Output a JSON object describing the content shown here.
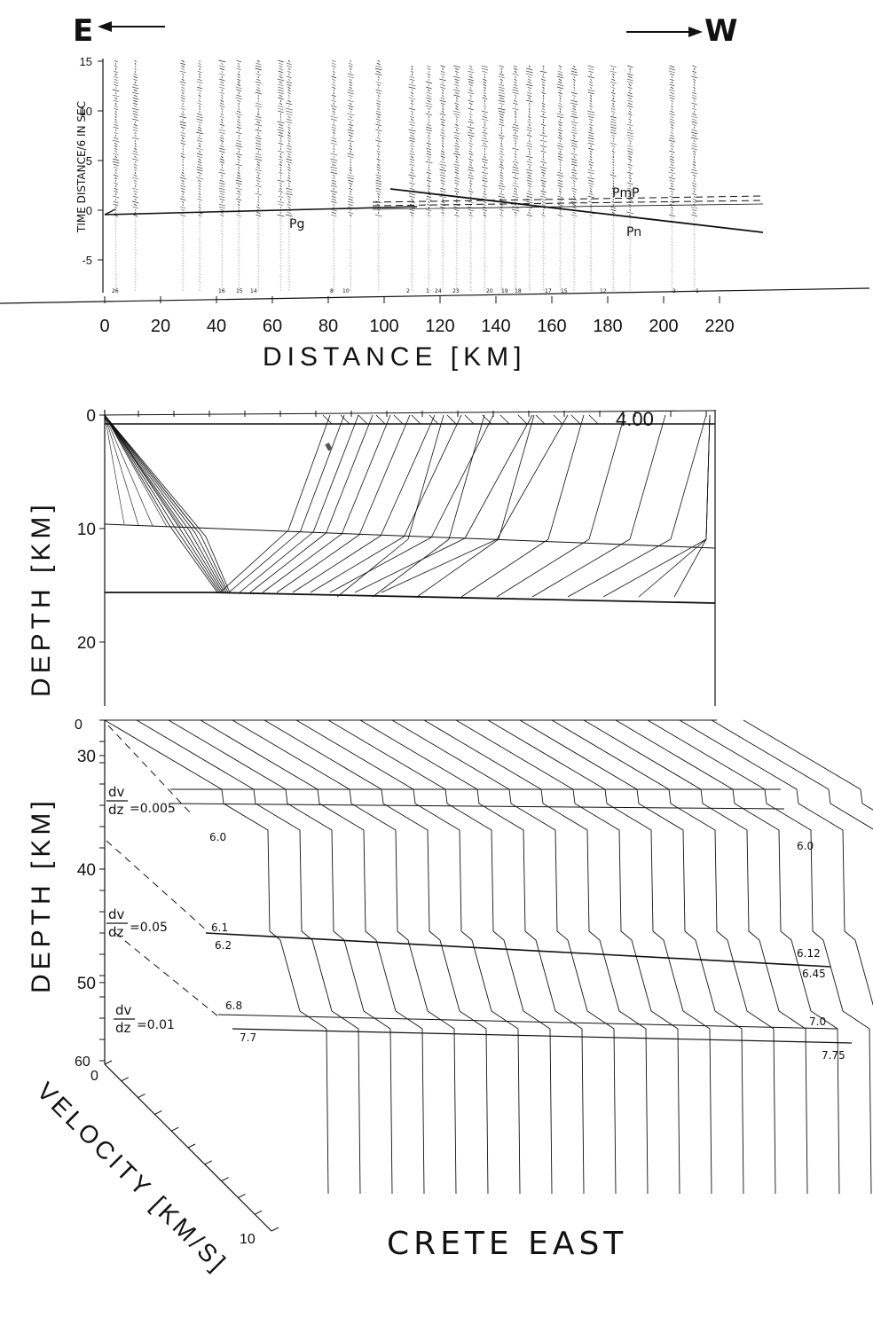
{
  "header": {
    "east_label": "E",
    "west_label": "W"
  },
  "seismogram_panel": {
    "y_axis_label": "TIME  DISTANCE/6  IN SEC",
    "y_ticks": [
      "15",
      "10",
      "5",
      "0",
      "-5"
    ],
    "x_ticks": [
      "0",
      "20",
      "40",
      "60",
      "80",
      "100",
      "120",
      "140",
      "160",
      "180",
      "200",
      "220"
    ],
    "x_axis_label": "DISTANCE  [KM]",
    "phase_labels": {
      "pg": "Pg",
      "pn": "Pn",
      "pmp": "PmP"
    },
    "station_numbers": [
      "26",
      "16",
      "15",
      "14",
      "8",
      "10",
      "2",
      "1",
      "24",
      "23",
      "20",
      "19",
      "18",
      "17",
      "15",
      "12",
      "3",
      "1"
    ]
  },
  "ray_panel": {
    "y_axis_label": "DEPTH  [KM]",
    "y_ticks": [
      "0",
      "10",
      "20",
      "30",
      "40",
      "50"
    ],
    "velocity_annotation": "4.00"
  },
  "velocity_panel": {
    "y_axis_label": "DEPTH  [KM]",
    "depth_ticks": [
      "0",
      "60"
    ],
    "velocity_axis_label": "VELOCITY  [KM/S]",
    "velocity_ticks": [
      "0",
      "10"
    ],
    "gradient_labels": [
      {
        "num": "dv",
        "den": "dz",
        "value": "=0.005"
      },
      {
        "num": "dv",
        "den": "dz",
        "value": "=0.05"
      },
      {
        "num": "dv",
        "den": "dz",
        "value": "=0.01"
      }
    ],
    "left_values": [
      "6.0",
      "6.1",
      "6.2",
      "6.8",
      "7.7"
    ],
    "right_values": [
      "6.0",
      "6.12",
      "6.45",
      "7.0",
      "7.75"
    ],
    "title": "CRETE  EAST"
  }
}
